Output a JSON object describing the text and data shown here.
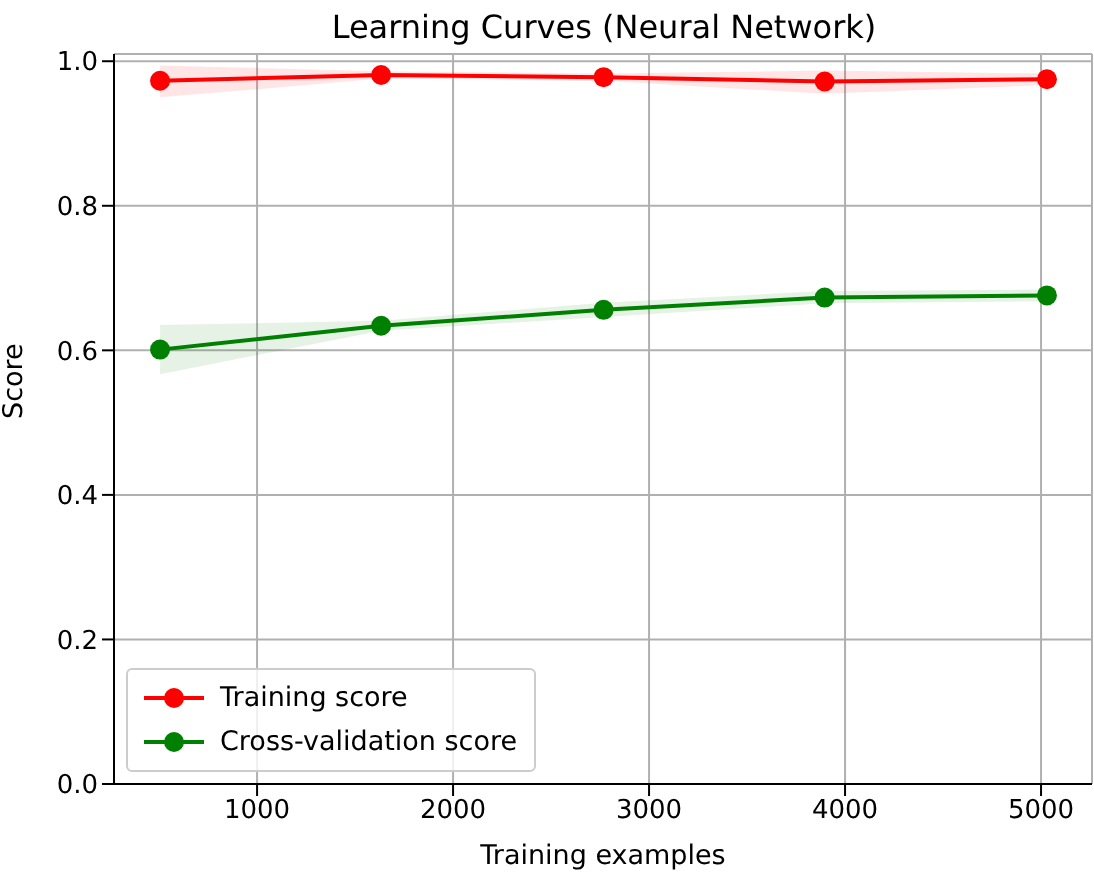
{
  "chart_data": {
    "type": "line",
    "title": "Learning Curves (Neural Network)",
    "xlabel": "Training examples",
    "ylabel": "Score",
    "x": [
      505,
      1633,
      2768,
      3896,
      5030
    ],
    "series": [
      {
        "name": "Training score",
        "color": "#ff0000",
        "values": [
          0.973,
          0.981,
          0.978,
          0.972,
          0.975
        ],
        "lower": [
          0.95,
          0.976,
          0.973,
          0.955,
          0.967
        ],
        "upper": [
          0.994,
          0.986,
          0.983,
          0.987,
          0.983
        ]
      },
      {
        "name": "Cross-validation score",
        "color": "#008000",
        "values": [
          0.601,
          0.634,
          0.656,
          0.673,
          0.676
        ],
        "lower": [
          0.567,
          0.627,
          0.646,
          0.665,
          0.668
        ],
        "upper": [
          0.635,
          0.641,
          0.666,
          0.682,
          0.684
        ]
      }
    ],
    "xlim": [
      270,
      5260
    ],
    "xticks": [
      1000,
      2000,
      3000,
      4000,
      5000
    ],
    "ylim": [
      0,
      1.01
    ],
    "yticks": [
      {
        "value": 0,
        "label": "0.0"
      },
      0.2,
      0.4,
      0.6,
      0.8,
      {
        "value": 1,
        "label": "1.0"
      }
    ],
    "grid": true,
    "legend": "bottom left",
    "marker": "circle",
    "line_style": "solid"
  }
}
